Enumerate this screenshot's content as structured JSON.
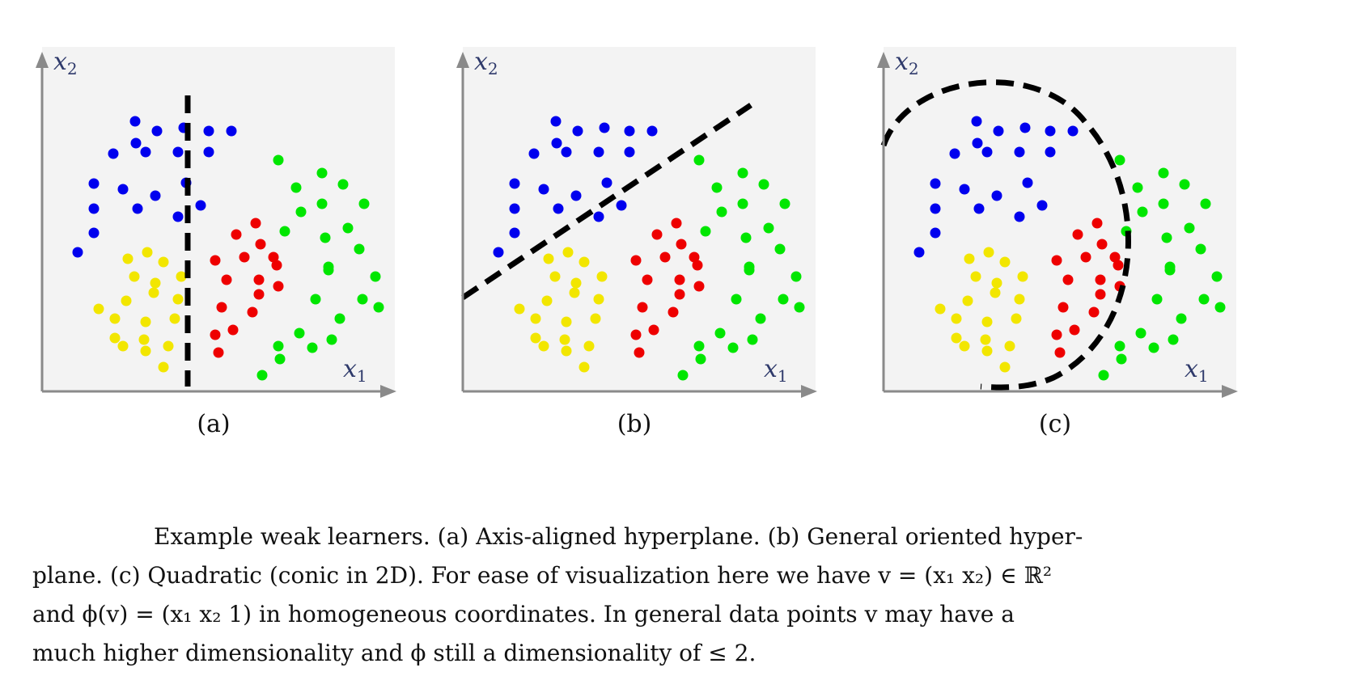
{
  "figure": {
    "panels": [
      {
        "id": "a",
        "label": "(a)",
        "boundary": "vertical-line",
        "x1_label": "x",
        "x1_sub": "1",
        "x2_label": "x",
        "x2_sub": "2"
      },
      {
        "id": "b",
        "label": "(b)",
        "boundary": "oriented-line",
        "x1_label": "x",
        "x1_sub": "1",
        "x2_label": "x",
        "x2_sub": "2"
      },
      {
        "id": "c",
        "label": "(c)",
        "boundary": "conic-arc",
        "x1_label": "x",
        "x1_sub": "1",
        "x2_label": "x",
        "x2_sub": "2"
      }
    ],
    "colors": {
      "blue": "#0000ee",
      "green": "#00e600",
      "red": "#ee0000",
      "yellow": "#f2e600",
      "axis": "#8a8a8a"
    }
  },
  "caption": {
    "line1": "Example weak learners. (a) Axis-aligned hyperplane. (b) General oriented hyper-",
    "line2": "plane. (c) Quadratic (conic in 2D). For ease of visualization here we have v = (x₁ x₂) ∈ ℝ²",
    "line3": "and ϕ(v) = (x₁ x₂ 1) in homogeneous coordinates. In general data points v may have a",
    "line4": "much higher dimensionality and ϕ still a dimensionality of ≤ 2."
  }
}
